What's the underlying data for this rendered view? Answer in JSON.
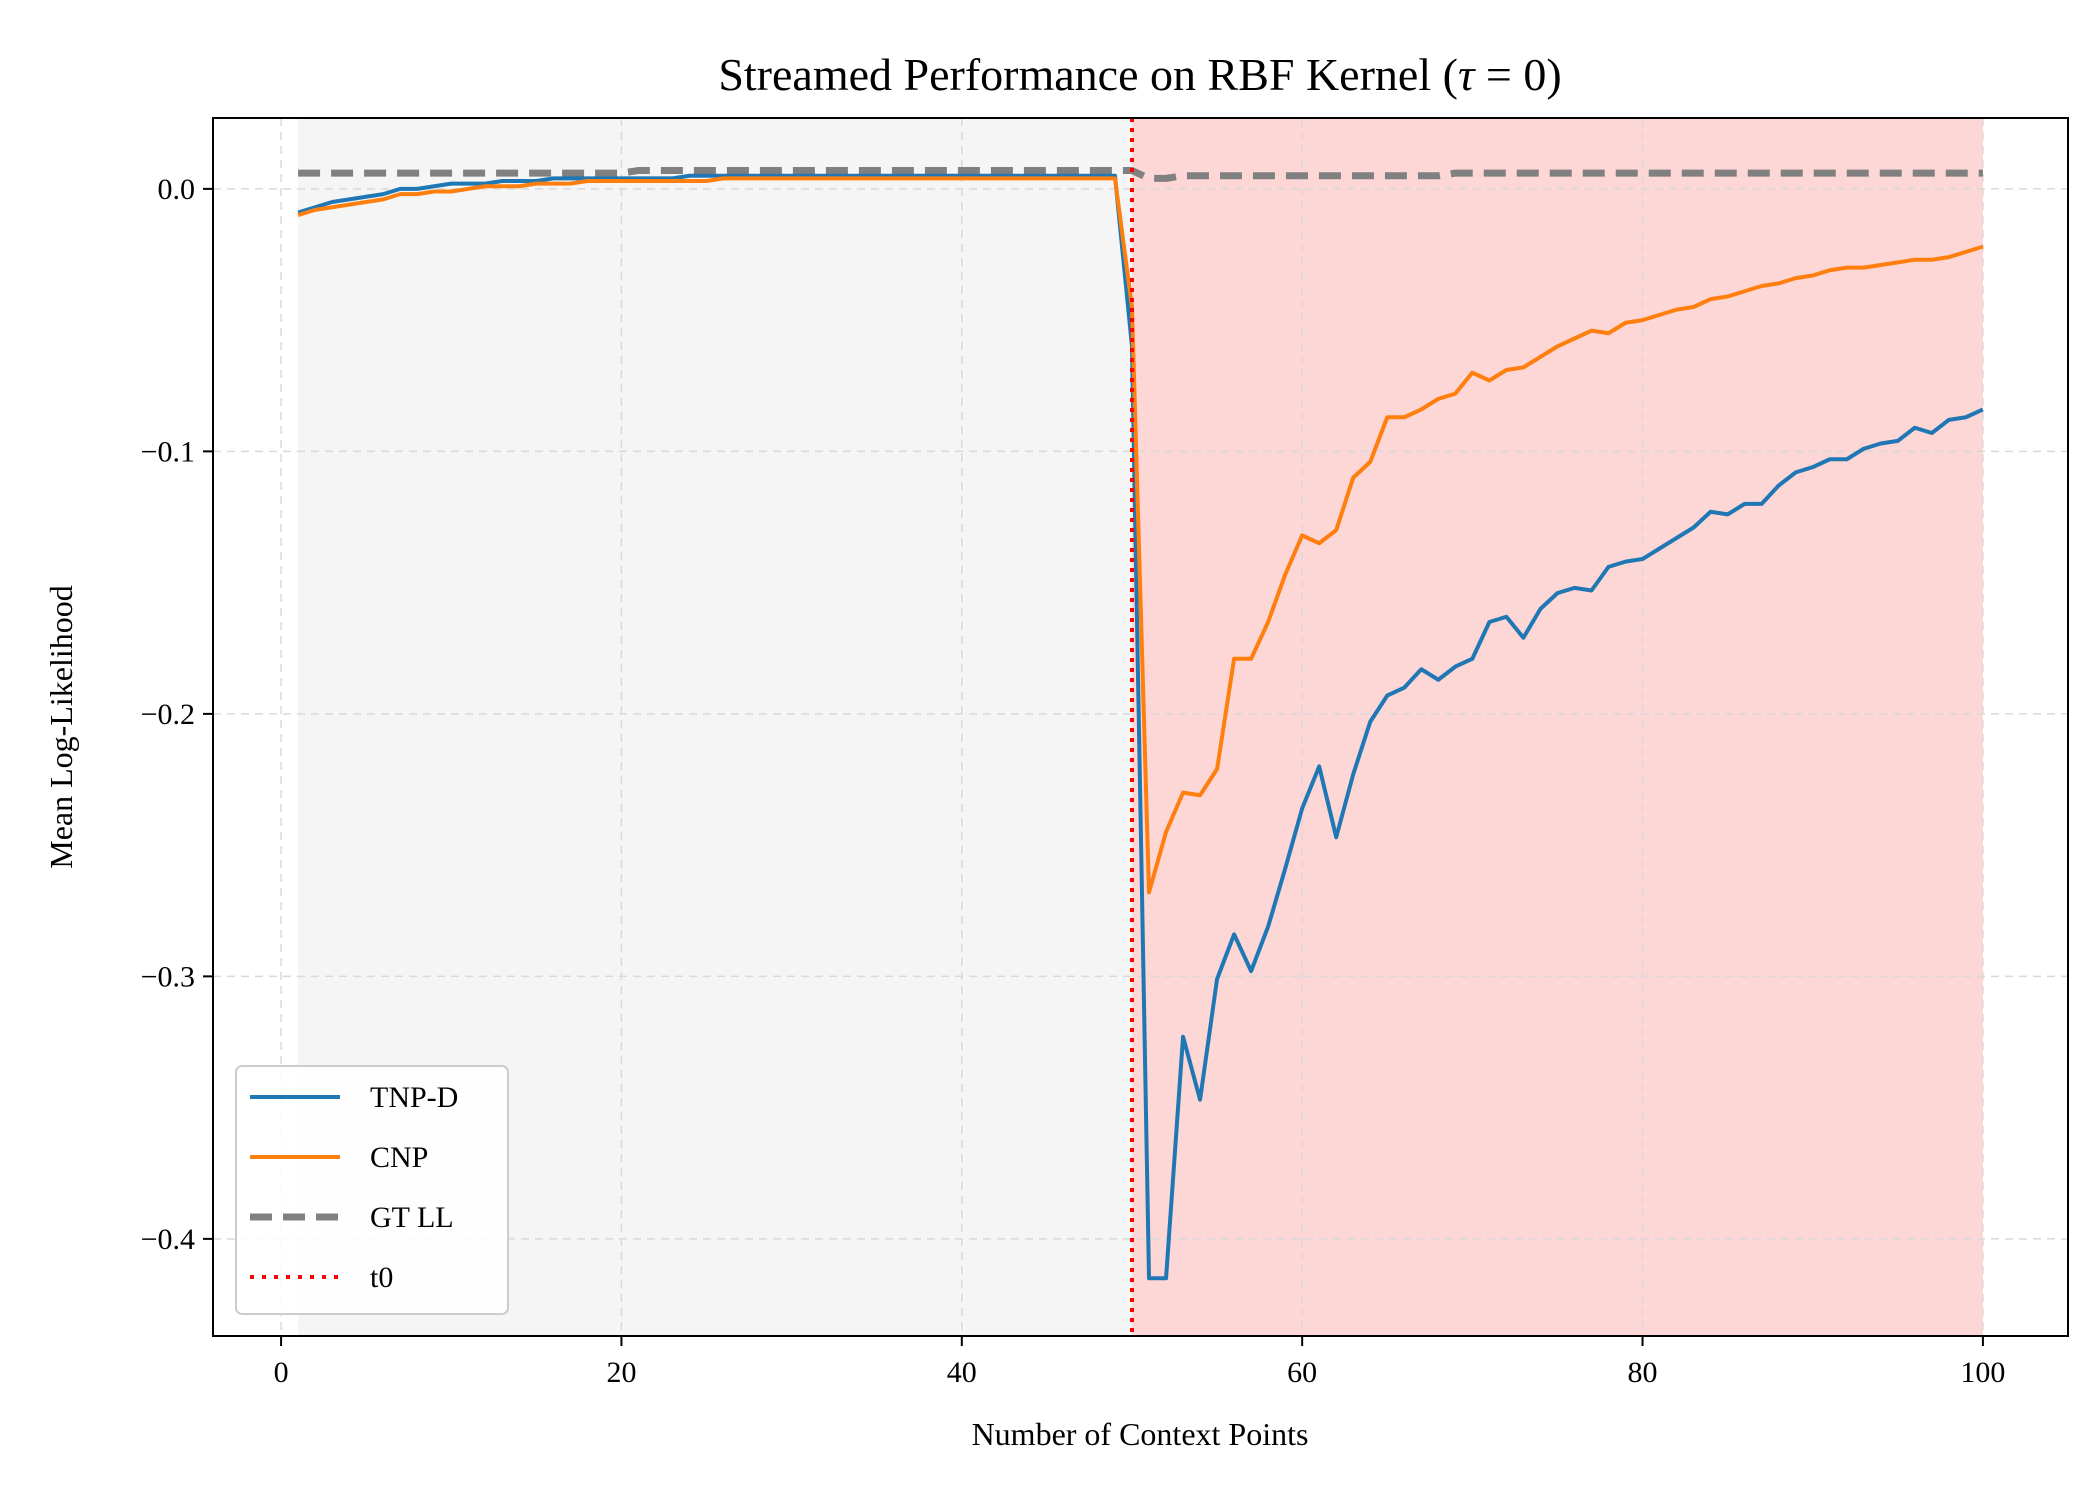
{
  "chart_data": {
    "type": "line",
    "title_prefix": "Streamed Performance on RBF Kernel (",
    "title_tau": "τ",
    "title_suffix": " = 0)",
    "xlabel": "Number of Context Points",
    "ylabel": "Mean Log-Likelihood",
    "xlim": [
      -4,
      105
    ],
    "ylim": [
      -0.437,
      0.027
    ],
    "xticks": [
      0,
      20,
      40,
      60,
      80,
      100
    ],
    "xtick_labels": [
      "0",
      "20",
      "40",
      "60",
      "80",
      "100"
    ],
    "yticks": [
      0.0,
      -0.1,
      -0.2,
      -0.3,
      -0.4
    ],
    "ytick_labels": [
      "0.0",
      "−0.1",
      "−0.2",
      "−0.3",
      "−0.4"
    ],
    "grid": true,
    "legend_position": "lower-left",
    "shaded_regions": [
      {
        "x_start": 1,
        "x_end": 50,
        "color": "#f5f5f5"
      },
      {
        "x_start": 50,
        "x_end": 100,
        "color": "#fdd6d6"
      }
    ],
    "vertical_markers": [
      {
        "name": "t0",
        "x": 50,
        "color": "#ff0000",
        "style": "dotted"
      }
    ],
    "x": [
      1,
      2,
      3,
      4,
      5,
      6,
      7,
      8,
      9,
      10,
      11,
      12,
      13,
      14,
      15,
      16,
      17,
      18,
      19,
      20,
      21,
      22,
      23,
      24,
      25,
      26,
      27,
      28,
      29,
      30,
      31,
      32,
      33,
      34,
      35,
      36,
      37,
      38,
      39,
      40,
      41,
      42,
      43,
      44,
      45,
      46,
      47,
      48,
      49,
      50,
      51,
      52,
      53,
      54,
      55,
      56,
      57,
      58,
      59,
      60,
      61,
      62,
      63,
      64,
      65,
      66,
      67,
      68,
      69,
      70,
      71,
      72,
      73,
      74,
      75,
      76,
      77,
      78,
      79,
      80,
      81,
      82,
      83,
      84,
      85,
      86,
      87,
      88,
      89,
      90,
      91,
      92,
      93,
      94,
      95,
      96,
      97,
      98,
      99,
      100
    ],
    "series": [
      {
        "name": "TNP-D",
        "color": "#1f77b4",
        "style": "solid",
        "values": [
          -0.009,
          -0.007,
          -0.005,
          -0.004,
          -0.003,
          -0.002,
          0.0,
          0.0,
          0.001,
          0.002,
          0.002,
          0.002,
          0.003,
          0.003,
          0.003,
          0.004,
          0.004,
          0.004,
          0.004,
          0.004,
          0.004,
          0.004,
          0.004,
          0.005,
          0.005,
          0.005,
          0.005,
          0.005,
          0.005,
          0.005,
          0.005,
          0.005,
          0.005,
          0.005,
          0.005,
          0.005,
          0.005,
          0.005,
          0.005,
          0.005,
          0.005,
          0.005,
          0.005,
          0.005,
          0.005,
          0.005,
          0.005,
          0.005,
          0.005,
          -0.06,
          -0.415,
          -0.415,
          -0.323,
          -0.347,
          -0.301,
          -0.284,
          -0.298,
          -0.281,
          -0.259,
          -0.236,
          -0.22,
          -0.247,
          -0.223,
          -0.203,
          -0.193,
          -0.19,
          -0.183,
          -0.187,
          -0.182,
          -0.179,
          -0.165,
          -0.163,
          -0.171,
          -0.16,
          -0.154,
          -0.152,
          -0.153,
          -0.144,
          -0.142,
          -0.141,
          -0.137,
          -0.133,
          -0.129,
          -0.123,
          -0.124,
          -0.12,
          -0.12,
          -0.113,
          -0.108,
          -0.106,
          -0.103,
          -0.103,
          -0.099,
          -0.097,
          -0.096,
          -0.091,
          -0.093,
          -0.088,
          -0.087,
          -0.084
        ]
      },
      {
        "name": "CNP",
        "color": "#ff7f0e",
        "style": "solid",
        "values": [
          -0.01,
          -0.008,
          -0.007,
          -0.006,
          -0.005,
          -0.004,
          -0.002,
          -0.002,
          -0.001,
          -0.001,
          0.0,
          0.001,
          0.001,
          0.001,
          0.002,
          0.002,
          0.002,
          0.003,
          0.003,
          0.003,
          0.003,
          0.003,
          0.003,
          0.003,
          0.003,
          0.004,
          0.004,
          0.004,
          0.004,
          0.004,
          0.004,
          0.004,
          0.004,
          0.004,
          0.004,
          0.004,
          0.004,
          0.004,
          0.004,
          0.004,
          0.004,
          0.004,
          0.004,
          0.004,
          0.004,
          0.004,
          0.004,
          0.004,
          0.004,
          -0.045,
          -0.268,
          -0.245,
          -0.23,
          -0.231,
          -0.221,
          -0.179,
          -0.179,
          -0.165,
          -0.147,
          -0.132,
          -0.135,
          -0.13,
          -0.11,
          -0.104,
          -0.087,
          -0.087,
          -0.084,
          -0.08,
          -0.078,
          -0.07,
          -0.073,
          -0.069,
          -0.068,
          -0.064,
          -0.06,
          -0.057,
          -0.054,
          -0.055,
          -0.051,
          -0.05,
          -0.048,
          -0.046,
          -0.045,
          -0.042,
          -0.041,
          -0.039,
          -0.037,
          -0.036,
          -0.034,
          -0.033,
          -0.031,
          -0.03,
          -0.03,
          -0.029,
          -0.028,
          -0.027,
          -0.027,
          -0.026,
          -0.024,
          -0.022
        ]
      },
      {
        "name": "GT LL",
        "color": "#808080",
        "style": "dashed",
        "values": [
          0.006,
          0.006,
          0.006,
          0.006,
          0.006,
          0.006,
          0.006,
          0.006,
          0.006,
          0.006,
          0.006,
          0.006,
          0.006,
          0.006,
          0.006,
          0.006,
          0.006,
          0.006,
          0.006,
          0.006,
          0.007,
          0.007,
          0.007,
          0.007,
          0.007,
          0.007,
          0.007,
          0.007,
          0.007,
          0.007,
          0.007,
          0.007,
          0.007,
          0.007,
          0.007,
          0.007,
          0.007,
          0.007,
          0.007,
          0.007,
          0.007,
          0.007,
          0.007,
          0.007,
          0.007,
          0.007,
          0.007,
          0.007,
          0.007,
          0.007,
          0.004,
          0.004,
          0.005,
          0.005,
          0.005,
          0.005,
          0.005,
          0.005,
          0.005,
          0.005,
          0.005,
          0.005,
          0.005,
          0.005,
          0.005,
          0.005,
          0.005,
          0.005,
          0.006,
          0.006,
          0.006,
          0.006,
          0.006,
          0.006,
          0.006,
          0.006,
          0.006,
          0.006,
          0.006,
          0.006,
          0.006,
          0.006,
          0.006,
          0.006,
          0.006,
          0.006,
          0.006,
          0.006,
          0.006,
          0.006,
          0.006,
          0.006,
          0.006,
          0.006,
          0.006,
          0.006,
          0.006,
          0.006,
          0.006,
          0.006
        ]
      }
    ],
    "legend": [
      {
        "label": "TNP-D",
        "color": "#1f77b4",
        "style": "solid"
      },
      {
        "label": "CNP",
        "color": "#ff7f0e",
        "style": "solid"
      },
      {
        "label": "GT LL",
        "color": "#808080",
        "style": "dashed"
      },
      {
        "label": "t0",
        "color": "#ff0000",
        "style": "dotted"
      }
    ]
  }
}
